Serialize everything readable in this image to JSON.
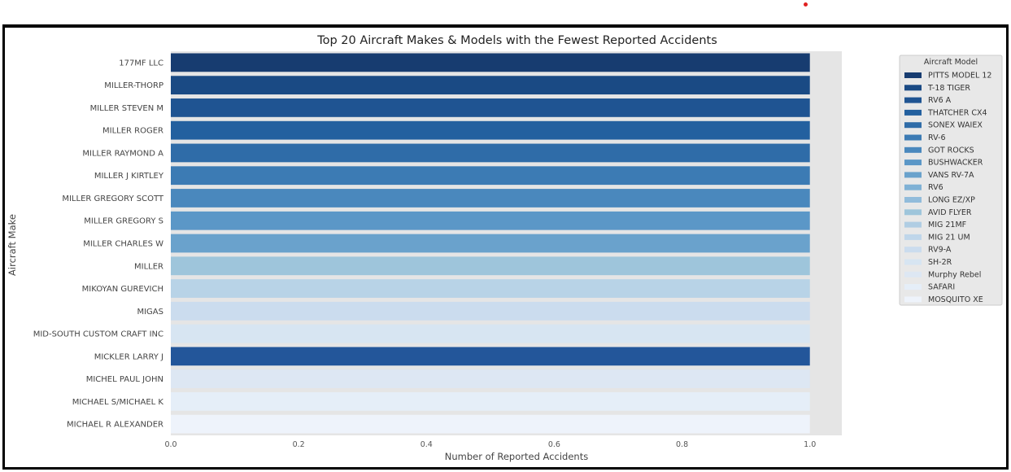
{
  "chart_data": {
    "type": "bar",
    "orientation": "horizontal",
    "title": "Top 20 Aircraft Makes & Models with the Fewest Reported Accidents",
    "xlabel": "Number of Reported Accidents",
    "ylabel": "Aircraft Make",
    "xlim": [
      0.0,
      1.05
    ],
    "xticks": [
      "0.0",
      "0.2",
      "0.4",
      "0.6",
      "0.8",
      "1.0"
    ],
    "grid": false,
    "legend_title": "Aircraft Model",
    "legend_placement": "upper-right-outside",
    "categories": [
      "177MF LLC",
      "MILLER-THORP",
      "MILLER STEVEN M",
      "MILLER ROGER",
      "MILLER RAYMOND A",
      "MILLER J KIRTLEY",
      "MILLER GREGORY SCOTT",
      "MILLER GREGORY S",
      "MILLER CHARLES W",
      "MILLER",
      "MIKOYAN GUREVICH",
      "MIGAS",
      "MID-SOUTH CUSTOM CRAFT INC",
      "MICKLER LARRY J",
      "MICHEL PAUL JOHN",
      "MICHAEL S/MICHAEL K",
      "MICHAEL R ALEXANDER"
    ],
    "values": [
      1,
      1,
      1,
      1,
      1,
      1,
      1,
      1,
      1,
      1,
      1,
      1,
      1,
      1,
      1,
      1,
      1
    ],
    "bar_colors": [
      "#173c70",
      "#1a4a84",
      "#1f5492",
      "#23609f",
      "#2f6ca8",
      "#3c7bb4",
      "#4a88bd",
      "#5b97c7",
      "#6aa2cc",
      "#9ec5db",
      "#b8d3e7",
      "#cbdcee",
      "#d7e5f2",
      "#23569a",
      "#dde7f3",
      "#e5eef8",
      "#eef3fb"
    ],
    "series": [
      {
        "name": "PITTS MODEL 12",
        "color": "#173c70"
      },
      {
        "name": "T-18 TIGER",
        "color": "#1a4a84"
      },
      {
        "name": "RV6 A",
        "color": "#1f5492"
      },
      {
        "name": "THATCHER CX4",
        "color": "#23609f"
      },
      {
        "name": "SONEX WAIEX",
        "color": "#2f6ca8"
      },
      {
        "name": "RV-6",
        "color": "#3c7bb4"
      },
      {
        "name": "GOT ROCKS",
        "color": "#4a88bd"
      },
      {
        "name": "BUSHWACKER",
        "color": "#5b97c7"
      },
      {
        "name": "VANS RV-7A",
        "color": "#6aa2cc"
      },
      {
        "name": "RV6",
        "color": "#7fb1d5"
      },
      {
        "name": "LONG EZ/XP",
        "color": "#92bcdb"
      },
      {
        "name": "AVID FLYER",
        "color": "#9ec5db"
      },
      {
        "name": "MIG 21MF",
        "color": "#b0cde3"
      },
      {
        "name": "MIG 21 UM",
        "color": "#bfd6ea"
      },
      {
        "name": "RV9-A",
        "color": "#cbdcee"
      },
      {
        "name": "SH-2R",
        "color": "#d7e5f2"
      },
      {
        "name": "Murphy Rebel",
        "color": "#dde7f3"
      },
      {
        "name": "SAFARI",
        "color": "#e5eef8"
      },
      {
        "name": "MOSQUITO XE",
        "color": "#eef3fb"
      }
    ],
    "plot_background": "#e5e5e5"
  }
}
